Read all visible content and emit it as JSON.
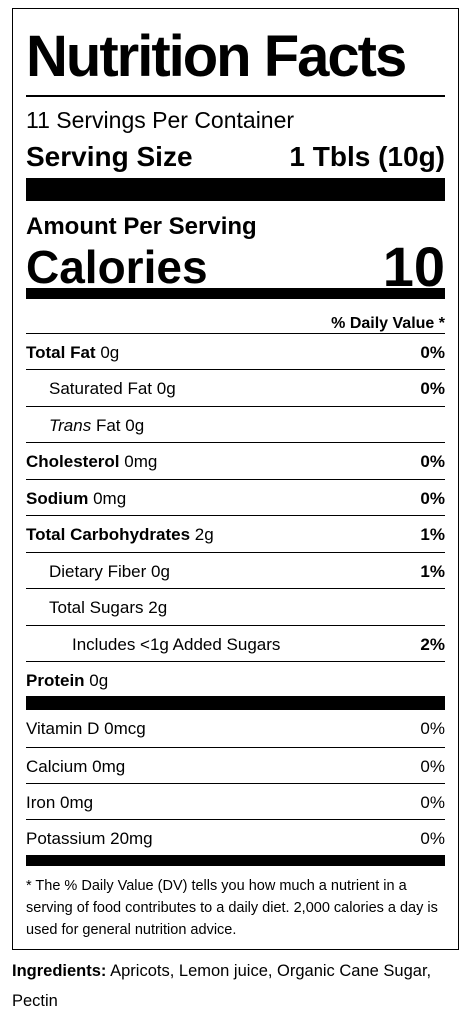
{
  "label": {
    "title": "Nutrition Facts",
    "servings_per_container": "11 Servings Per Container",
    "serving_size_label": "Serving Size",
    "serving_size_value": "1 Tbls (10g)",
    "amount_per_serving": "Amount Per Serving",
    "calories_label": "Calories",
    "calories_value": "10",
    "daily_value_header": "% Daily Value *",
    "nutrients": [
      {
        "name": "Total Fat",
        "amount": "0g",
        "dv": "0%"
      },
      {
        "name": "Saturated Fat",
        "amount": "0g",
        "dv": "0%"
      },
      {
        "name": "Trans",
        "suffix": "Fat",
        "amount": "0g",
        "dv": ""
      },
      {
        "name": "Cholesterol",
        "amount": "0mg",
        "dv": "0%"
      },
      {
        "name": "Sodium",
        "amount": "0mg",
        "dv": "0%"
      },
      {
        "name": "Total Carbohydrates",
        "amount": "2g",
        "dv": "1%"
      },
      {
        "name": "Dietary Fiber",
        "amount": "0g",
        "dv": "1%"
      },
      {
        "name": "Total Sugars",
        "amount": "2g",
        "dv": ""
      },
      {
        "name": "Includes <1g Added Sugars",
        "amount": "",
        "dv": "2%"
      },
      {
        "name": "Protein",
        "amount": "0g",
        "dv": ""
      }
    ],
    "vitamins": [
      {
        "name": "Vitamin D",
        "amount": "0mcg",
        "dv": "0%"
      },
      {
        "name": "Calcium",
        "amount": "0mg",
        "dv": "0%"
      },
      {
        "name": "Iron",
        "amount": "0mg",
        "dv": "0%"
      },
      {
        "name": "Potassium",
        "amount": "20mg",
        "dv": "0%"
      }
    ],
    "footnote": "* The % Daily Value (DV) tells you how much a nutrient in a serving of food contributes to a daily diet. 2,000 calories a day is used for general nutrition advice."
  },
  "ingredients": {
    "label": "Ingredients:",
    "text": "Apricots, Lemon juice, Organic Cane Sugar, Pectin"
  }
}
